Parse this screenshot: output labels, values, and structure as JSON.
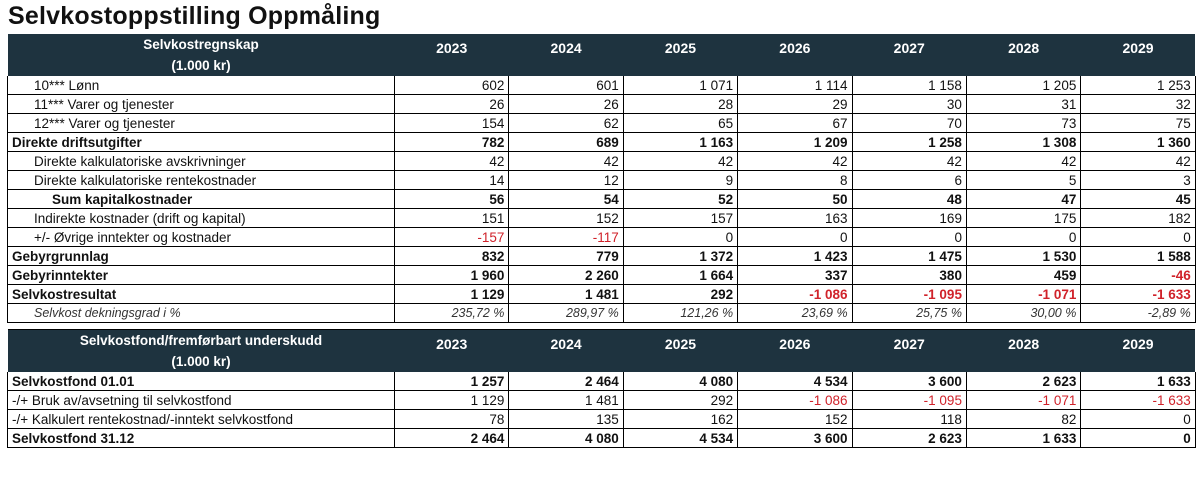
{
  "title": "Selvkostoppstilling Oppmåling",
  "table1": {
    "header_line1": "Selvkostregnskap",
    "header_line2": "(1.000 kr)",
    "years": [
      "2023",
      "2024",
      "2025",
      "2026",
      "2027",
      "2028",
      "2029"
    ],
    "rows": [
      {
        "label": "10*** Lønn",
        "values": [
          "602",
          "601",
          "1 071",
          "1 114",
          "1 158",
          "1 205",
          "1 253"
        ]
      },
      {
        "label": "11*** Varer og tjenester",
        "values": [
          "26",
          "26",
          "28",
          "29",
          "30",
          "31",
          "32"
        ]
      },
      {
        "label": "12*** Varer og tjenester",
        "values": [
          "154",
          "62",
          "65",
          "67",
          "70",
          "73",
          "75"
        ]
      },
      {
        "label": "Direkte driftsutgifter",
        "values": [
          "782",
          "689",
          "1 163",
          "1 209",
          "1 258",
          "1 308",
          "1 360"
        ]
      },
      {
        "label": "Direkte kalkulatoriske avskrivninger",
        "values": [
          "42",
          "42",
          "42",
          "42",
          "42",
          "42",
          "42"
        ]
      },
      {
        "label": "Direkte kalkulatoriske rentekostnader",
        "values": [
          "14",
          "12",
          "9",
          "8",
          "6",
          "5",
          "3"
        ]
      },
      {
        "label": "Sum kapitalkostnader",
        "values": [
          "56",
          "54",
          "52",
          "50",
          "48",
          "47",
          "45"
        ]
      },
      {
        "label": "Indirekte kostnader (drift og kapital)",
        "values": [
          "151",
          "152",
          "157",
          "163",
          "169",
          "175",
          "182"
        ]
      },
      {
        "label": "+/- Øvrige inntekter og kostnader",
        "values": [
          "-157",
          "-117",
          "0",
          "0",
          "0",
          "0",
          "0"
        ]
      },
      {
        "label": "Gebyrgrunnlag",
        "values": [
          "832",
          "779",
          "1 372",
          "1 423",
          "1 475",
          "1 530",
          "1 588"
        ]
      },
      {
        "label": "Gebyrinntekter",
        "values": [
          "1 960",
          "2 260",
          "1 664",
          "337",
          "380",
          "459",
          "-46"
        ]
      },
      {
        "label": "Selvkostresultat",
        "values": [
          "1 129",
          "1 481",
          "292",
          "-1 086",
          "-1 095",
          "-1 071",
          "-1 633"
        ]
      },
      {
        "label": "Selvkost dekningsgrad i %",
        "values": [
          "235,72 %",
          "289,97 %",
          "121,26 %",
          "23,69 %",
          "25,75 %",
          "30,00 %",
          "-2,89 %"
        ]
      }
    ]
  },
  "table2": {
    "header_line1": "Selvkostfond/fremførbart underskudd",
    "header_line2": "(1.000 kr)",
    "years": [
      "2023",
      "2024",
      "2025",
      "2026",
      "2027",
      "2028",
      "2029"
    ],
    "rows": [
      {
        "label": "Selvkostfond 01.01",
        "values": [
          "1 257",
          "2 464",
          "4 080",
          "4 534",
          "3 600",
          "2 623",
          "1 633"
        ]
      },
      {
        "label": "-/+ Bruk av/avsetning til selvkostfond",
        "values": [
          "1 129",
          "1 481",
          "292",
          "-1 086",
          "-1 095",
          "-1 071",
          "-1 633"
        ]
      },
      {
        "label": "-/+ Kalkulert rentekostnad/-inntekt selvkostfond",
        "values": [
          "78",
          "135",
          "162",
          "152",
          "118",
          "82",
          "0"
        ]
      },
      {
        "label": "Selvkostfond 31.12",
        "values": [
          "2 464",
          "4 080",
          "4 534",
          "3 600",
          "2 623",
          "1 633",
          "0"
        ]
      }
    ]
  },
  "colors": {
    "header_bg": "#1e333f",
    "header_text": "#ffffff",
    "negative": "#d0222a"
  }
}
